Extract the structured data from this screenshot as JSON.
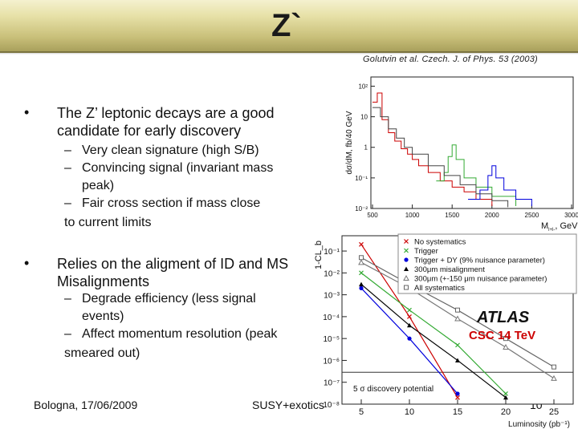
{
  "slide": {
    "title": "Z`",
    "citation": "Golutvin et al. Czech. J. of Phys. 53 (2003)",
    "bullets": [
      {
        "symbol": "•",
        "line1": "The Z’ leptonic decays are a good",
        "line2": "candidate for early discovery",
        "sub": [
          {
            "dash": "–",
            "line1": "Very clean signature (high S/B)"
          },
          {
            "dash": "–",
            "line1": "Convincing signal (invariant mass",
            "line2": "peak)"
          },
          {
            "dash": "–",
            "line1": "Fair cross section if mass close",
            "line2": "to current limits"
          }
        ]
      },
      {
        "symbol": "•",
        "line1": "Relies on the aligment of ID and MS",
        "line2": "Misalignments",
        "sub": [
          {
            "dash": "–",
            "line1": "Degrade efficiency (less signal",
            "line2": "events)"
          },
          {
            "dash": "–",
            "line1": "Affect momentum resolution (peak",
            "line2": "smeared out)"
          }
        ]
      }
    ],
    "footer": {
      "left": "Bologna, 17/06/2009",
      "center": "SUSY+exotics",
      "page": "10"
    }
  },
  "colors": {
    "header_top": "#f4f1cf",
    "header_bottom": "#a59c58",
    "red": "#cc0000",
    "green": "#33aa33",
    "blue": "#0000dd",
    "csc_red": "#cc0000"
  },
  "chart_data": [
    {
      "type": "line",
      "ylabel": "dσ/dM, fb/40 GeV",
      "xlabel": "M",
      "xlabel_sub": "l+l-",
      "xlabel_unit": ", GeV",
      "x_ticks": [
        "500",
        "1000",
        "1500",
        "2000",
        "2500",
        "3000"
      ],
      "y_ticks": [
        "10²",
        "10",
        "1",
        "10⁻¹",
        "10⁻²"
      ],
      "xlim": [
        500,
        3000
      ],
      "ylim": [
        0.01,
        200
      ],
      "y_scale": "log",
      "series": [
        {
          "color": "#cc0000",
          "x": [
            500,
            560,
            620,
            700,
            780,
            860,
            940,
            1000,
            1080,
            1200,
            1350,
            1500,
            1650,
            1800,
            2000
          ],
          "y": [
            30,
            60,
            8,
            3,
            1.6,
            0.9,
            0.6,
            0.4,
            0.25,
            0.15,
            0.08,
            0.05,
            0.035,
            0.02,
            0.012
          ]
        },
        {
          "color": "#33aa33",
          "x": [
            1300,
            1400,
            1450,
            1500,
            1550,
            1650,
            1800,
            2000,
            2300
          ],
          "y": [
            0.08,
            0.15,
            0.5,
            1.2,
            0.4,
            0.1,
            0.05,
            0.025,
            0.012
          ]
        },
        {
          "color": "#0000dd",
          "x": [
            1700,
            1850,
            1950,
            2000,
            2050,
            2150,
            2300,
            2500
          ],
          "y": [
            0.02,
            0.04,
            0.12,
            0.25,
            0.1,
            0.04,
            0.02,
            0.012
          ]
        },
        {
          "color": "#444444",
          "x": [
            500,
            600,
            700,
            800,
            900,
            1000,
            1200,
            1400,
            1600,
            1800,
            2000,
            2200
          ],
          "y": [
            20,
            10,
            4,
            2,
            1,
            0.6,
            0.25,
            0.12,
            0.06,
            0.03,
            0.018,
            0.011
          ]
        }
      ]
    },
    {
      "type": "line",
      "ylabel": "1-CL_b",
      "xlabel": "Luminosity (pb⁻¹)",
      "x_ticks": [
        "5",
        "10",
        "15",
        "20",
        "25"
      ],
      "y_ticks": [
        "10⁻¹",
        "10⁻²",
        "10⁻³",
        "10⁻⁴",
        "10⁻⁵",
        "10⁻⁶",
        "10⁻⁷",
        "10⁻⁸"
      ],
      "xlim": [
        3,
        27
      ],
      "ylim": [
        1e-08,
        0.5
      ],
      "y_scale": "log",
      "legend_position": "top-right",
      "experiment": "ATLAS",
      "annotation": "CSC 14 TeV",
      "discovery_label": "5 σ discovery potential",
      "discovery_level": 2.87e-07,
      "series": [
        {
          "name": "No systematics",
          "color": "#cc0000",
          "marker": "x",
          "x": [
            5,
            10,
            15
          ],
          "y": [
            0.2,
            0.0001,
            2e-08
          ]
        },
        {
          "name": "Trigger",
          "color": "#33aa33",
          "marker": "x",
          "x": [
            5,
            10,
            15,
            20
          ],
          "y": [
            0.01,
            0.0002,
            5e-06,
            3e-08
          ]
        },
        {
          "name": "Trigger + DY (9% nuisance parameter)",
          "color": "#0000dd",
          "marker": "dot",
          "x": [
            5,
            10,
            15
          ],
          "y": [
            0.002,
            1e-05,
            3e-08
          ]
        },
        {
          "name": "300μm misalignment",
          "color": "#000000",
          "marker": "triangle",
          "x": [
            5,
            10,
            15,
            20
          ],
          "y": [
            0.003,
            4e-05,
            1e-06,
            2e-08
          ]
        },
        {
          "name": "300μm (+-150 μm nuisance parameter)",
          "color": "#777777",
          "marker": "triangle-open",
          "x": [
            5,
            10,
            15,
            20,
            25
          ],
          "y": [
            0.03,
            0.002,
            8e-05,
            4e-06,
            1.5e-07
          ]
        },
        {
          "name": "All systematics",
          "color": "#666666",
          "marker": "square-open",
          "x": [
            5,
            10,
            15,
            20,
            25
          ],
          "y": [
            0.05,
            0.003,
            0.0002,
            1e-05,
            5e-07
          ]
        }
      ]
    }
  ]
}
